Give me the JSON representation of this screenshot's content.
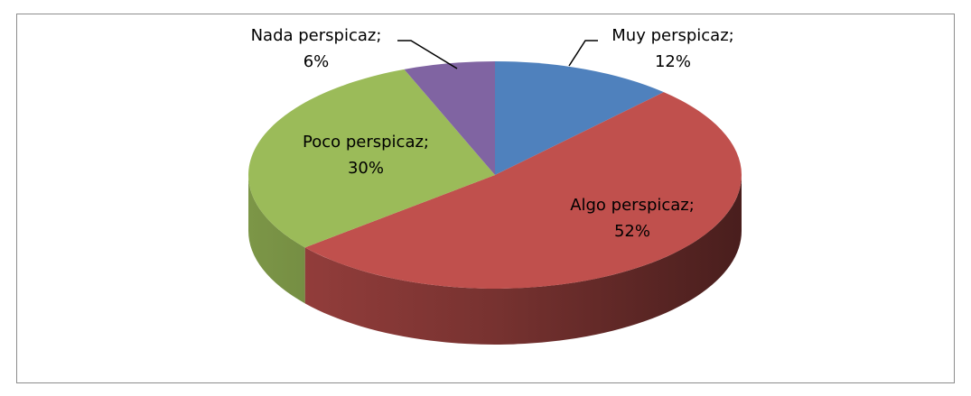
{
  "chart_data": {
    "type": "pie",
    "categories": [
      "Muy perspicaz;",
      "Algo perspicaz;",
      "Poco perspicaz;",
      "Nada perspicaz;"
    ],
    "values": [
      12,
      52,
      30,
      6
    ],
    "value_labels": [
      "12%",
      "52%",
      "30%",
      "6%"
    ],
    "colors": [
      "#4f81bd",
      "#c0504d",
      "#9bbb59",
      "#8064a2"
    ]
  }
}
